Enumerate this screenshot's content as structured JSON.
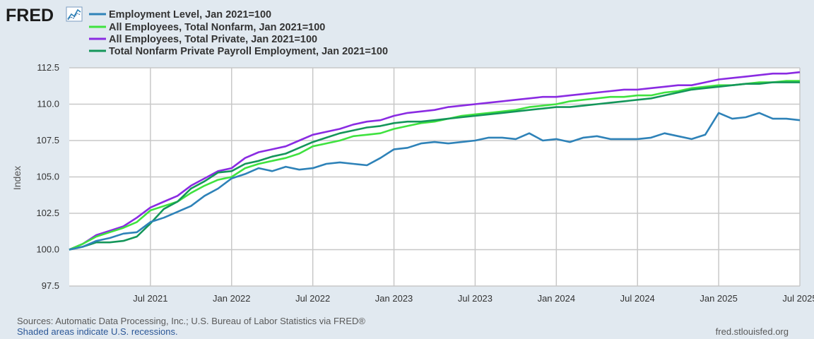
{
  "logo": {
    "text": "FRED"
  },
  "legend": [
    {
      "label": "Employment Level, Jan 2021=100",
      "color": "#2e82b8"
    },
    {
      "label": "All Employees, Total Nonfarm, Jan 2021=100",
      "color": "#3fe23f"
    },
    {
      "label": "All Employees, Total Private, Jan 2021=100",
      "color": "#8a2be2"
    },
    {
      "label": "Total Nonfarm Private Payroll Employment, Jan 2021=100",
      "color": "#14965a"
    }
  ],
  "chart_data": {
    "type": "line",
    "title": "",
    "xlabel": "",
    "ylabel": "Index",
    "x_start": "2021-01",
    "x_end": "2025-07",
    "ylim": [
      97.5,
      112.5
    ],
    "yticks": [
      "97.5",
      "100.0",
      "102.5",
      "105.0",
      "107.5",
      "110.0",
      "112.5"
    ],
    "xticks": [
      "Jul 2021",
      "Jan 2022",
      "Jul 2022",
      "Jan 2023",
      "Jul 2023",
      "Jan 2024",
      "Jul 2024",
      "Jan 2025",
      "Jul 2025"
    ],
    "grid": true,
    "legend_position": "top-left",
    "series": [
      {
        "name": "Employment Level, Jan 2021=100",
        "color": "#2e82b8",
        "values": [
          100.0,
          100.2,
          100.6,
          100.8,
          101.1,
          101.2,
          101.9,
          102.2,
          102.6,
          103.0,
          103.7,
          104.2,
          104.9,
          105.2,
          105.6,
          105.4,
          105.7,
          105.5,
          105.6,
          105.9,
          106.0,
          105.9,
          105.8,
          106.3,
          106.9,
          107.0,
          107.3,
          107.4,
          107.3,
          107.4,
          107.5,
          107.7,
          107.7,
          107.6,
          108.0,
          107.5,
          107.6,
          107.4,
          107.7,
          107.8,
          107.6,
          107.6,
          107.6,
          107.7,
          108.0,
          107.8,
          107.6,
          107.9,
          109.4,
          109.0,
          109.1,
          109.4,
          109.0,
          109.0,
          108.9
        ]
      },
      {
        "name": "All Employees, Total Nonfarm, Jan 2021=100",
        "color": "#3fe23f",
        "values": [
          100.0,
          100.4,
          100.9,
          101.2,
          101.5,
          101.9,
          102.7,
          103.0,
          103.3,
          103.9,
          104.4,
          104.8,
          105.0,
          105.6,
          105.9,
          106.1,
          106.3,
          106.6,
          107.1,
          107.3,
          107.5,
          107.8,
          107.9,
          108.0,
          108.3,
          108.5,
          108.7,
          108.8,
          109.0,
          109.2,
          109.3,
          109.4,
          109.5,
          109.6,
          109.8,
          109.9,
          110.0,
          110.2,
          110.3,
          110.4,
          110.5,
          110.5,
          110.6,
          110.6,
          110.8,
          110.9,
          111.1,
          111.2,
          111.3,
          111.3,
          111.4,
          111.5,
          111.5,
          111.6,
          111.6
        ]
      },
      {
        "name": "All Employees, Total Private, Jan 2021=100",
        "color": "#8a2be2",
        "values": [
          100.0,
          100.4,
          101.0,
          101.3,
          101.6,
          102.2,
          102.9,
          103.3,
          103.7,
          104.4,
          104.9,
          105.4,
          105.6,
          106.3,
          106.7,
          106.9,
          107.1,
          107.5,
          107.9,
          108.1,
          108.3,
          108.6,
          108.8,
          108.9,
          109.2,
          109.4,
          109.5,
          109.6,
          109.8,
          109.9,
          110.0,
          110.1,
          110.2,
          110.3,
          110.4,
          110.5,
          110.5,
          110.6,
          110.7,
          110.8,
          110.9,
          111.0,
          111.0,
          111.1,
          111.2,
          111.3,
          111.3,
          111.5,
          111.7,
          111.8,
          111.9,
          112.0,
          112.1,
          112.1,
          112.2
        ]
      },
      {
        "name": "Total Nonfarm Private Payroll Employment, Jan 2021=100",
        "color": "#14965a",
        "values": [
          100.0,
          100.2,
          100.5,
          100.5,
          100.6,
          100.9,
          101.8,
          102.8,
          103.3,
          104.2,
          104.7,
          105.3,
          105.4,
          105.9,
          106.1,
          106.4,
          106.6,
          107.0,
          107.4,
          107.7,
          108.0,
          108.2,
          108.4,
          108.5,
          108.7,
          108.8,
          108.8,
          108.9,
          109.0,
          109.1,
          109.2,
          109.3,
          109.4,
          109.5,
          109.6,
          109.7,
          109.8,
          109.8,
          109.9,
          110.0,
          110.1,
          110.2,
          110.3,
          110.4,
          110.6,
          110.8,
          111.0,
          111.1,
          111.2,
          111.3,
          111.4,
          111.4,
          111.5,
          111.5,
          111.5
        ]
      }
    ]
  },
  "footer": {
    "sources": "Sources: Automatic Data Processing, Inc.; U.S. Bureau of Labor Statistics via FRED®",
    "recession_note": "Shaded areas indicate U.S. recessions.",
    "site": "fred.stlouisfed.org"
  }
}
